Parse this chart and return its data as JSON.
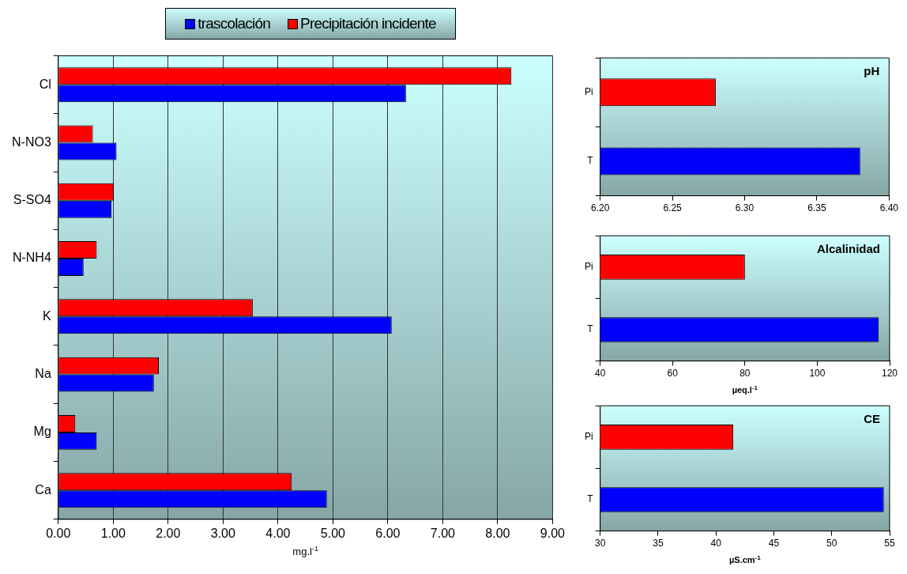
{
  "chart_data": [
    {
      "type": "bar",
      "orientation": "horizontal",
      "categories": [
        "Cl",
        "N-NO3",
        "S-SO4",
        "N-NH4",
        "K",
        "Na",
        "Mg",
        "Ca"
      ],
      "series": [
        {
          "name": "trascolación",
          "color": "#0000ff",
          "values": [
            6.33,
            1.06,
            0.97,
            0.46,
            6.07,
            1.74,
            0.7,
            4.89
          ]
        },
        {
          "name": "Precipitación incidente",
          "color": "#ff0000",
          "values": [
            8.25,
            0.63,
            1.01,
            0.7,
            3.54,
            1.83,
            0.31,
            4.25
          ]
        }
      ],
      "xlim": [
        0,
        9
      ],
      "xticks": [
        {
          "value": 0,
          "label": "0.00"
        },
        {
          "value": 1,
          "label": "1.00"
        },
        {
          "value": 2,
          "label": "2.00"
        },
        {
          "value": 3,
          "label": "3.00"
        },
        {
          "value": 4,
          "label": "4.00"
        },
        {
          "value": 5,
          "label": "5.00"
        },
        {
          "value": 6,
          "label": "6.00"
        },
        {
          "value": 7,
          "label": "7.00"
        },
        {
          "value": 8,
          "label": "8.00"
        },
        {
          "value": 9,
          "label": "9.00"
        }
      ],
      "xlabel": "mg.l$^{-1}$",
      "grid": "x",
      "legend": "top"
    },
    {
      "type": "bar",
      "orientation": "horizontal",
      "title": "pH",
      "categories": [
        "Pi",
        "T"
      ],
      "values": [
        6.28,
        6.38
      ],
      "colors": [
        "#ff0000",
        "#0000ff"
      ],
      "xlim": [
        6.2,
        6.4
      ],
      "xticks": [
        {
          "value": 6.2,
          "label": "6.20"
        },
        {
          "value": 6.25,
          "label": "6.25"
        },
        {
          "value": 6.3,
          "label": "6.30"
        },
        {
          "value": 6.35,
          "label": "6.35"
        },
        {
          "value": 6.4,
          "label": "6.40"
        }
      ],
      "grid": false
    },
    {
      "type": "bar",
      "orientation": "horizontal",
      "title": "Alcalinidad",
      "categories": [
        "Pi",
        "T"
      ],
      "values": [
        80,
        117
      ],
      "colors": [
        "#ff0000",
        "#0000ff"
      ],
      "xlim": [
        40,
        120
      ],
      "xticks": [
        40,
        60,
        80,
        100,
        120
      ],
      "xlabel": "µeq.l$^{-1}$",
      "grid": false
    },
    {
      "type": "bar",
      "orientation": "horizontal",
      "title": "CE",
      "categories": [
        "Pi",
        "T"
      ],
      "values": [
        41.5,
        54.5
      ],
      "colors": [
        "#ff0000",
        "#0000ff"
      ],
      "xlim": [
        30,
        55
      ],
      "xticks": [
        30,
        35,
        40,
        45,
        50,
        55
      ],
      "xlabel": "µS.cm$^{-1}$",
      "grid": false
    }
  ]
}
